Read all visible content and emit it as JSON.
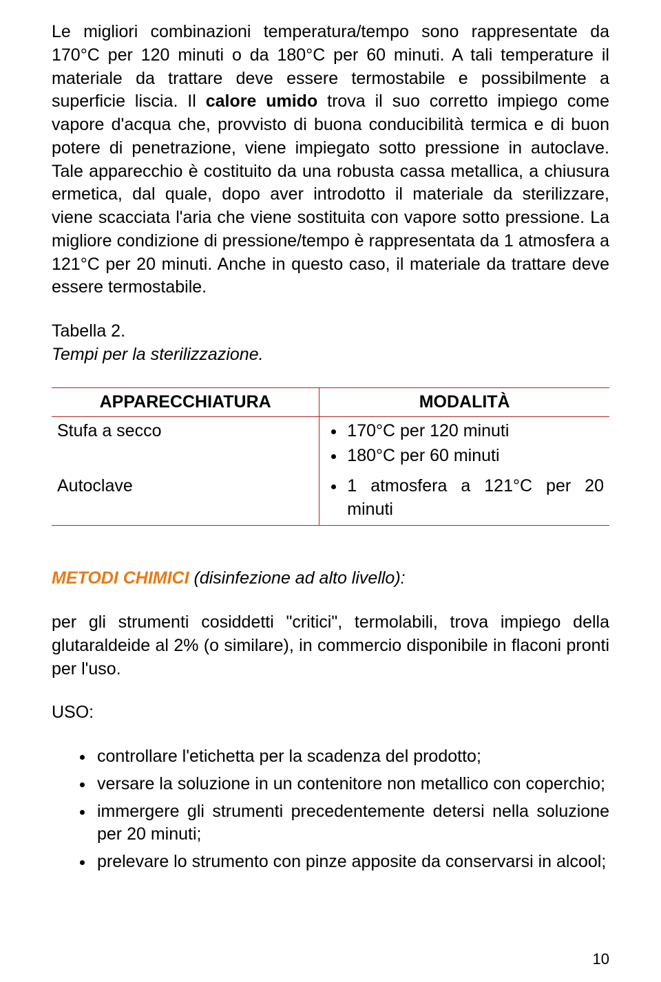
{
  "colors": {
    "accent": "#e77a17",
    "table_border": "#b22222",
    "text": "#000000",
    "background": "#ffffff"
  },
  "para1_pre": "Le migliori combinazioni temperatura/tempo sono rappresentate da 170°C per 120 minuti o da 180°C per 60 minuti. A tali temperature il materiale da trattare deve essere termostabile e possibilmente a superficie liscia. Il ",
  "para1_bold": "calore umido",
  "para1_post": " trova il suo corretto impiego come vapore d'acqua che, provvisto di buona conducibilità termica e di buon potere di penetrazione, viene impiegato sotto pressione in autoclave. Tale apparecchio è costituito da una robusta cassa metallica, a chiusura ermetica, dal quale, dopo aver introdotto il materiale da sterilizzare, viene scacciata l'aria che viene sostituita con vapore sotto pressione. La migliore condizione di pressione/tempo è rappresentata da 1 atmosfera a 121°C per 20 minuti. Anche in questo caso, il materiale da trattare deve essere termostabile.",
  "table_label": "Tabella 2.",
  "table_caption": "Tempi per la sterilizzazione.",
  "table": {
    "col1_header": "APPARECCHIATURA",
    "col2_header": "MODALITÀ",
    "rows": [
      {
        "apparatus": "Stufa a secco",
        "items": [
          "170°C per 120 minuti",
          "180°C per 60 minuti"
        ]
      },
      {
        "apparatus": "Autoclave",
        "items": [
          "1 atmosfera a 121°C per 20 minuti"
        ]
      }
    ]
  },
  "section_heading_accent": "METODI CHIMICI",
  "section_heading_rest": " (disinfezione ad alto livello):",
  "para2": "per gli strumenti cosiddetti \"critici\", termolabili, trova impiego della glutaraldeide al 2% (o similare), in commercio disponibile in flaconi pronti per l'uso.",
  "uso_label": "USO:",
  "uso_items": [
    "controllare l'etichetta per la scadenza del prodotto;",
    "versare la soluzione in un contenitore non metallico con coperchio;",
    "immergere gli strumenti precedentemente detersi nella soluzione per 20 minuti;",
    "prelevare lo strumento con pinze apposite da conservarsi in alcool;"
  ],
  "page_number": "10"
}
